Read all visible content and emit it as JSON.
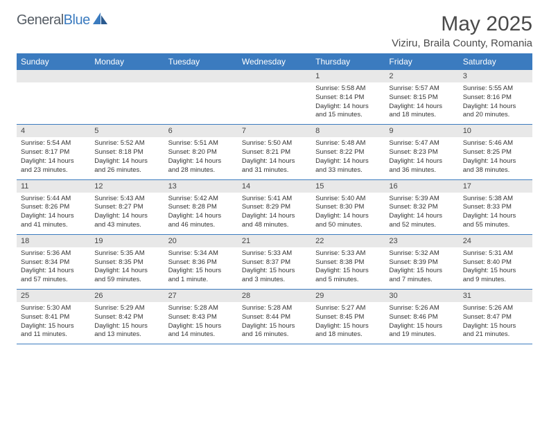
{
  "logo": {
    "part1": "General",
    "part2": "Blue"
  },
  "title": "May 2025",
  "location": "Viziru, Braila County, Romania",
  "colors": {
    "header_bg": "#3b7bbf",
    "header_text": "#ffffff",
    "daynum_bg": "#e8e8e8",
    "border": "#3b7bbf",
    "logo_gray": "#555c64",
    "logo_blue": "#3b7bbf"
  },
  "days_of_week": [
    "Sunday",
    "Monday",
    "Tuesday",
    "Wednesday",
    "Thursday",
    "Friday",
    "Saturday"
  ],
  "weeks": [
    [
      null,
      null,
      null,
      null,
      {
        "n": "1",
        "sr": "5:58 AM",
        "ss": "8:14 PM",
        "dl": "14 hours and 15 minutes."
      },
      {
        "n": "2",
        "sr": "5:57 AM",
        "ss": "8:15 PM",
        "dl": "14 hours and 18 minutes."
      },
      {
        "n": "3",
        "sr": "5:55 AM",
        "ss": "8:16 PM",
        "dl": "14 hours and 20 minutes."
      }
    ],
    [
      {
        "n": "4",
        "sr": "5:54 AM",
        "ss": "8:17 PM",
        "dl": "14 hours and 23 minutes."
      },
      {
        "n": "5",
        "sr": "5:52 AM",
        "ss": "8:18 PM",
        "dl": "14 hours and 26 minutes."
      },
      {
        "n": "6",
        "sr": "5:51 AM",
        "ss": "8:20 PM",
        "dl": "14 hours and 28 minutes."
      },
      {
        "n": "7",
        "sr": "5:50 AM",
        "ss": "8:21 PM",
        "dl": "14 hours and 31 minutes."
      },
      {
        "n": "8",
        "sr": "5:48 AM",
        "ss": "8:22 PM",
        "dl": "14 hours and 33 minutes."
      },
      {
        "n": "9",
        "sr": "5:47 AM",
        "ss": "8:23 PM",
        "dl": "14 hours and 36 minutes."
      },
      {
        "n": "10",
        "sr": "5:46 AM",
        "ss": "8:25 PM",
        "dl": "14 hours and 38 minutes."
      }
    ],
    [
      {
        "n": "11",
        "sr": "5:44 AM",
        "ss": "8:26 PM",
        "dl": "14 hours and 41 minutes."
      },
      {
        "n": "12",
        "sr": "5:43 AM",
        "ss": "8:27 PM",
        "dl": "14 hours and 43 minutes."
      },
      {
        "n": "13",
        "sr": "5:42 AM",
        "ss": "8:28 PM",
        "dl": "14 hours and 46 minutes."
      },
      {
        "n": "14",
        "sr": "5:41 AM",
        "ss": "8:29 PM",
        "dl": "14 hours and 48 minutes."
      },
      {
        "n": "15",
        "sr": "5:40 AM",
        "ss": "8:30 PM",
        "dl": "14 hours and 50 minutes."
      },
      {
        "n": "16",
        "sr": "5:39 AM",
        "ss": "8:32 PM",
        "dl": "14 hours and 52 minutes."
      },
      {
        "n": "17",
        "sr": "5:38 AM",
        "ss": "8:33 PM",
        "dl": "14 hours and 55 minutes."
      }
    ],
    [
      {
        "n": "18",
        "sr": "5:36 AM",
        "ss": "8:34 PM",
        "dl": "14 hours and 57 minutes."
      },
      {
        "n": "19",
        "sr": "5:35 AM",
        "ss": "8:35 PM",
        "dl": "14 hours and 59 minutes."
      },
      {
        "n": "20",
        "sr": "5:34 AM",
        "ss": "8:36 PM",
        "dl": "15 hours and 1 minute."
      },
      {
        "n": "21",
        "sr": "5:33 AM",
        "ss": "8:37 PM",
        "dl": "15 hours and 3 minutes."
      },
      {
        "n": "22",
        "sr": "5:33 AM",
        "ss": "8:38 PM",
        "dl": "15 hours and 5 minutes."
      },
      {
        "n": "23",
        "sr": "5:32 AM",
        "ss": "8:39 PM",
        "dl": "15 hours and 7 minutes."
      },
      {
        "n": "24",
        "sr": "5:31 AM",
        "ss": "8:40 PM",
        "dl": "15 hours and 9 minutes."
      }
    ],
    [
      {
        "n": "25",
        "sr": "5:30 AM",
        "ss": "8:41 PM",
        "dl": "15 hours and 11 minutes."
      },
      {
        "n": "26",
        "sr": "5:29 AM",
        "ss": "8:42 PM",
        "dl": "15 hours and 13 minutes."
      },
      {
        "n": "27",
        "sr": "5:28 AM",
        "ss": "8:43 PM",
        "dl": "15 hours and 14 minutes."
      },
      {
        "n": "28",
        "sr": "5:28 AM",
        "ss": "8:44 PM",
        "dl": "15 hours and 16 minutes."
      },
      {
        "n": "29",
        "sr": "5:27 AM",
        "ss": "8:45 PM",
        "dl": "15 hours and 18 minutes."
      },
      {
        "n": "30",
        "sr": "5:26 AM",
        "ss": "8:46 PM",
        "dl": "15 hours and 19 minutes."
      },
      {
        "n": "31",
        "sr": "5:26 AM",
        "ss": "8:47 PM",
        "dl": "15 hours and 21 minutes."
      }
    ]
  ],
  "labels": {
    "sunrise": "Sunrise: ",
    "sunset": "Sunset: ",
    "daylight": "Daylight: "
  }
}
